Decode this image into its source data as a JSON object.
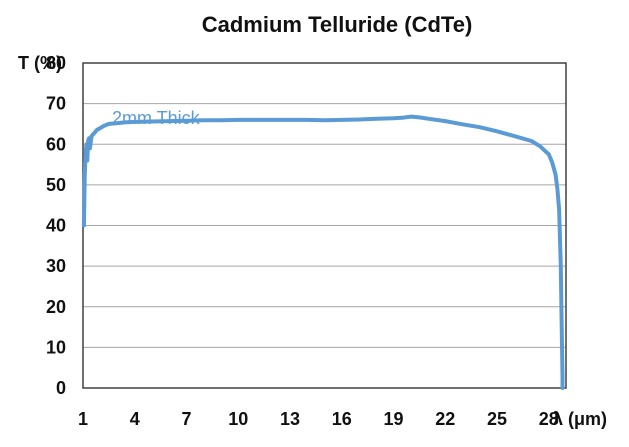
{
  "chart_data": {
    "type": "line",
    "title": "Cadmium Telluride (CdTe)",
    "ylabel": "T (%)",
    "xlabel": "λ (μm)",
    "xlim": [
      1,
      29
    ],
    "ylim": [
      0,
      80
    ],
    "xticks": [
      1,
      4,
      7,
      10,
      13,
      16,
      19,
      22,
      25,
      28
    ],
    "yticks": [
      0,
      10,
      20,
      30,
      40,
      50,
      60,
      70,
      80
    ],
    "grid": "horizontal",
    "series": [
      {
        "name": "2mm Thick",
        "color": "#5b9bd5",
        "x": [
          1.05,
          1.1,
          1.15,
          1.2,
          1.25,
          1.3,
          1.35,
          1.4,
          1.5,
          1.6,
          1.7,
          1.8,
          2.0,
          2.2,
          2.5,
          3.0,
          3.5,
          4.0,
          5.0,
          6.0,
          7.0,
          8.0,
          9.0,
          10.0,
          11.0,
          12.0,
          13.0,
          14.0,
          15.0,
          16.0,
          17.0,
          18.0,
          19.0,
          19.5,
          20.0,
          20.5,
          21.0,
          22.0,
          23.0,
          24.0,
          25.0,
          26.0,
          27.0,
          27.5,
          28.0,
          28.2,
          28.4,
          28.5,
          28.6,
          28.7,
          28.75,
          28.8,
          28.8
        ],
        "y": [
          40,
          52,
          58,
          60,
          56,
          61,
          61.5,
          59,
          62,
          62.5,
          63,
          63.5,
          64,
          64.5,
          65,
          65.2,
          65.4,
          65.5,
          65.6,
          65.7,
          65.8,
          65.9,
          65.9,
          66.0,
          66.0,
          66.0,
          66.0,
          66.0,
          65.9,
          66.0,
          66.1,
          66.3,
          66.4,
          66.5,
          66.8,
          66.6,
          66.3,
          65.7,
          64.9,
          64.2,
          63.2,
          62.0,
          60.8,
          59.5,
          57.5,
          55.5,
          52.5,
          49.0,
          44.0,
          30.0,
          15.0,
          3.0,
          0.0
        ]
      }
    ]
  }
}
